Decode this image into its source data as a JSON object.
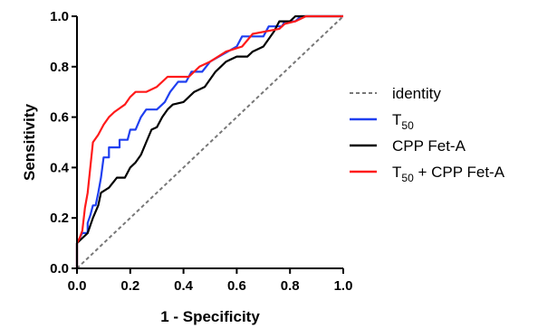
{
  "chart_data": {
    "type": "line",
    "title": "",
    "xlabel": "1 - Specificity",
    "ylabel": "Sensitivity",
    "xlim": [
      0,
      1
    ],
    "ylim": [
      0,
      1
    ],
    "xticks": [
      "0.0",
      "0.2",
      "0.4",
      "0.6",
      "0.8",
      "1.0"
    ],
    "yticks": [
      "0.0",
      "0.2",
      "0.4",
      "0.6",
      "0.8",
      "1.0"
    ],
    "grid": false,
    "legend_position": "right",
    "series": [
      {
        "key": "identity",
        "name": "identity",
        "legend_main": "identity",
        "legend_sub": "",
        "legend_tail": "",
        "color": "#777777",
        "dashed": true,
        "points": [
          [
            0,
            0
          ],
          [
            1,
            1
          ]
        ]
      },
      {
        "key": "t50",
        "name": "T50",
        "legend_main": "T",
        "legend_sub": "50",
        "legend_tail": "",
        "color": "#1f3ff0",
        "dashed": false,
        "points": [
          [
            0,
            0
          ],
          [
            0,
            0.1
          ],
          [
            0.02,
            0.14
          ],
          [
            0.04,
            0.14
          ],
          [
            0.04,
            0.18
          ],
          [
            0.05,
            0.21
          ],
          [
            0.06,
            0.25
          ],
          [
            0.07,
            0.25
          ],
          [
            0.08,
            0.3
          ],
          [
            0.09,
            0.36
          ],
          [
            0.1,
            0.44
          ],
          [
            0.12,
            0.44
          ],
          [
            0.12,
            0.48
          ],
          [
            0.16,
            0.48
          ],
          [
            0.16,
            0.51
          ],
          [
            0.19,
            0.51
          ],
          [
            0.2,
            0.55
          ],
          [
            0.22,
            0.55
          ],
          [
            0.24,
            0.6
          ],
          [
            0.26,
            0.63
          ],
          [
            0.3,
            0.63
          ],
          [
            0.33,
            0.66
          ],
          [
            0.35,
            0.7
          ],
          [
            0.38,
            0.74
          ],
          [
            0.41,
            0.74
          ],
          [
            0.43,
            0.78
          ],
          [
            0.47,
            0.78
          ],
          [
            0.5,
            0.82
          ],
          [
            0.55,
            0.85
          ],
          [
            0.6,
            0.88
          ],
          [
            0.62,
            0.92
          ],
          [
            0.7,
            0.92
          ],
          [
            0.72,
            0.96
          ],
          [
            0.77,
            0.96
          ],
          [
            0.78,
            0.98
          ],
          [
            0.82,
            0.98
          ],
          [
            0.84,
            1.0
          ],
          [
            1.0,
            1.0
          ]
        ]
      },
      {
        "key": "cpp",
        "name": "CPP Fet-A",
        "legend_main": "CPP Fet-A",
        "legend_sub": "",
        "legend_tail": "",
        "color": "#000000",
        "dashed": false,
        "points": [
          [
            0,
            0
          ],
          [
            0,
            0.1
          ],
          [
            0.02,
            0.12
          ],
          [
            0.04,
            0.14
          ],
          [
            0.06,
            0.2
          ],
          [
            0.08,
            0.25
          ],
          [
            0.09,
            0.3
          ],
          [
            0.12,
            0.32
          ],
          [
            0.15,
            0.36
          ],
          [
            0.18,
            0.36
          ],
          [
            0.2,
            0.4
          ],
          [
            0.22,
            0.42
          ],
          [
            0.24,
            0.45
          ],
          [
            0.26,
            0.5
          ],
          [
            0.28,
            0.55
          ],
          [
            0.3,
            0.56
          ],
          [
            0.32,
            0.6
          ],
          [
            0.34,
            0.63
          ],
          [
            0.36,
            0.65
          ],
          [
            0.4,
            0.66
          ],
          [
            0.44,
            0.7
          ],
          [
            0.48,
            0.72
          ],
          [
            0.52,
            0.78
          ],
          [
            0.56,
            0.82
          ],
          [
            0.6,
            0.84
          ],
          [
            0.64,
            0.84
          ],
          [
            0.66,
            0.86
          ],
          [
            0.7,
            0.88
          ],
          [
            0.74,
            0.94
          ],
          [
            0.76,
            0.98
          ],
          [
            0.8,
            0.98
          ],
          [
            0.82,
            1.0
          ],
          [
            1.0,
            1.0
          ]
        ]
      },
      {
        "key": "combined",
        "name": "T50 + CPP Fet-A",
        "legend_main": "T",
        "legend_sub": "50",
        "legend_tail": " + CPP Fet-A",
        "color": "#ff1a1a",
        "dashed": false,
        "points": [
          [
            0,
            0
          ],
          [
            0,
            0.1
          ],
          [
            0.01,
            0.12
          ],
          [
            0.02,
            0.15
          ],
          [
            0.03,
            0.24
          ],
          [
            0.04,
            0.3
          ],
          [
            0.05,
            0.4
          ],
          [
            0.06,
            0.5
          ],
          [
            0.08,
            0.53
          ],
          [
            0.1,
            0.57
          ],
          [
            0.12,
            0.6
          ],
          [
            0.14,
            0.62
          ],
          [
            0.18,
            0.65
          ],
          [
            0.2,
            0.68
          ],
          [
            0.22,
            0.7
          ],
          [
            0.26,
            0.7
          ],
          [
            0.3,
            0.72
          ],
          [
            0.34,
            0.76
          ],
          [
            0.42,
            0.76
          ],
          [
            0.46,
            0.8
          ],
          [
            0.5,
            0.82
          ],
          [
            0.56,
            0.86
          ],
          [
            0.62,
            0.88
          ],
          [
            0.66,
            0.93
          ],
          [
            0.76,
            0.95
          ],
          [
            0.78,
            0.97
          ],
          [
            0.82,
            0.98
          ],
          [
            0.86,
            1.0
          ],
          [
            1.0,
            1.0
          ]
        ]
      }
    ]
  }
}
